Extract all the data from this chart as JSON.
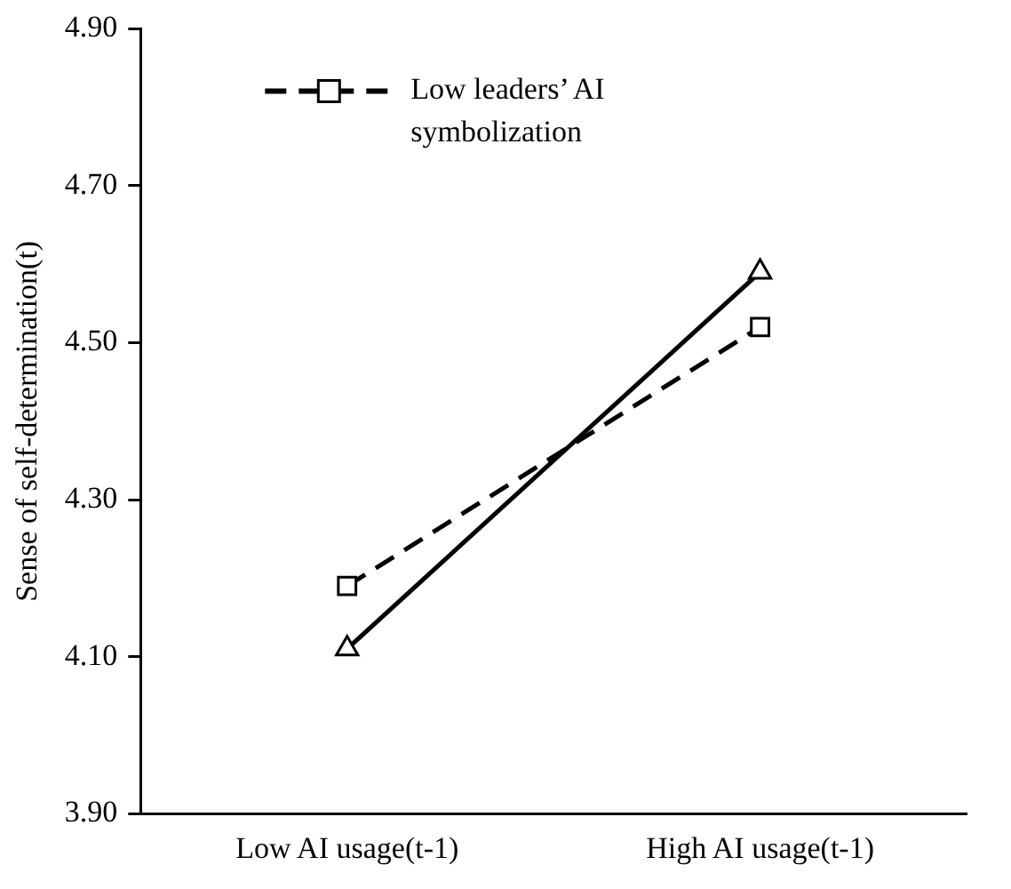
{
  "chart_data": {
    "type": "line",
    "ylabel": "Sense of self-determination(t)",
    "categories": [
      "Low AI usage(t-1)",
      "High AI usage(t-1)"
    ],
    "series": [
      {
        "name": "Low leaders’ AI symbolization",
        "color": "#000000",
        "values": [
          4.19,
          4.52
        ],
        "marker": "square",
        "line_style": "dashed"
      },
      {
        "color": "#000000",
        "values": [
          4.11,
          4.59
        ],
        "marker": "triangle",
        "line_style": "solid"
      }
    ],
    "ylim": [
      3.9,
      4.9
    ],
    "yticks": [
      {
        "value": 3.9,
        "label": "3.90"
      },
      {
        "value": 4.1,
        "label": "4.10"
      },
      {
        "value": 4.3,
        "label": "4.30"
      },
      {
        "value": 4.5,
        "label": "4.50"
      },
      {
        "value": 4.7,
        "label": "4.70"
      },
      {
        "value": 4.9,
        "label": "4.90"
      }
    ],
    "grid": false,
    "legend": "top left"
  }
}
